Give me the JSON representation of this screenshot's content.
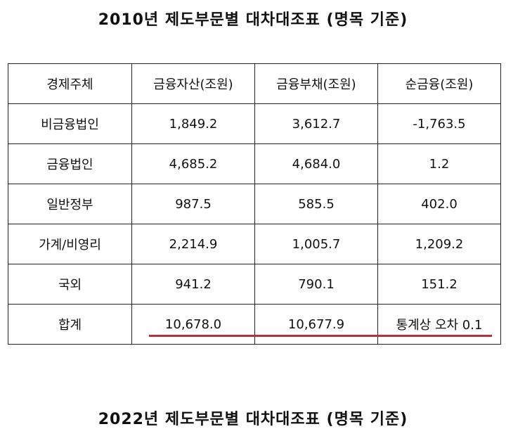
{
  "title": "2010년 제도부문별 대차대조표 (명목 기준)",
  "next_title": "2022년 제도부문별 대차대조표 (명목 기준)",
  "table": {
    "headers": [
      "경제주체",
      "금융자산(조원)",
      "금융부채(조원)",
      "순금융(조원)"
    ],
    "rows": [
      [
        "비금융법인",
        "1,849.2",
        "3,612.7",
        "-1,763.5"
      ],
      [
        "금융법인",
        "4,685.2",
        "4,684.0",
        "1.2"
      ],
      [
        "일반정부",
        "987.5",
        "585.5",
        "402.0"
      ],
      [
        "가계/비영리",
        "2,214.9",
        "1,005.7",
        "1,209.2"
      ],
      [
        "국외",
        "941.2",
        "790.1",
        "151.2"
      ],
      [
        "합계",
        "10,678.0",
        "10,677.9",
        "통계상 오차 0.1"
      ]
    ]
  },
  "underline_color": "#b2333a"
}
